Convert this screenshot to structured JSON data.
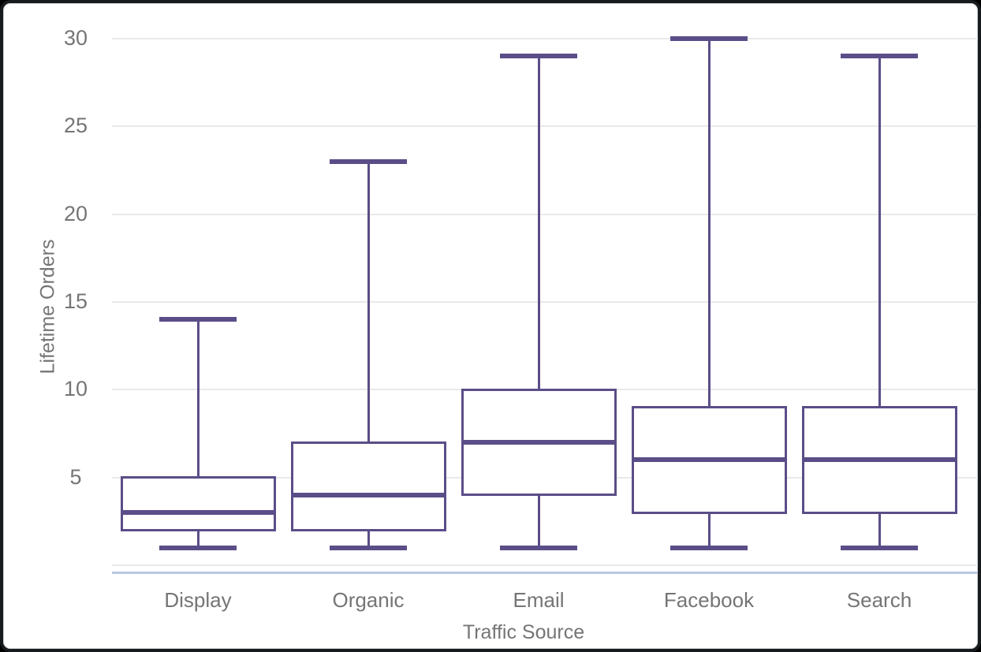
{
  "chart_data": {
    "type": "box",
    "title": "",
    "xlabel": "Traffic Source",
    "ylabel": "Lifetime Orders",
    "categories": [
      "Display",
      "Organic",
      "Email",
      "Facebook",
      "Search"
    ],
    "yticks": [
      5,
      10,
      15,
      20,
      25,
      30
    ],
    "ylim": [
      0,
      30
    ],
    "grid": "horizontal",
    "legend": "none",
    "series": [
      {
        "category": "Display",
        "min": 1,
        "q1": 2,
        "median": 3,
        "q3": 5,
        "max": 14
      },
      {
        "category": "Organic",
        "min": 1,
        "q1": 2,
        "median": 4,
        "q3": 7,
        "max": 23
      },
      {
        "category": "Email",
        "min": 1,
        "q1": 4,
        "median": 7,
        "q3": 10,
        "max": 29
      },
      {
        "category": "Facebook",
        "min": 1,
        "q1": 3,
        "median": 6,
        "q3": 9,
        "max": 30
      },
      {
        "category": "Search",
        "min": 1,
        "q1": 3,
        "median": 6,
        "q3": 9,
        "max": 29
      }
    ],
    "colors": {
      "box_stroke": "#5b4d88",
      "gridline": "#e9e9e9",
      "axis_baseline": "#b9c8e1",
      "label_text": "#757575"
    }
  }
}
